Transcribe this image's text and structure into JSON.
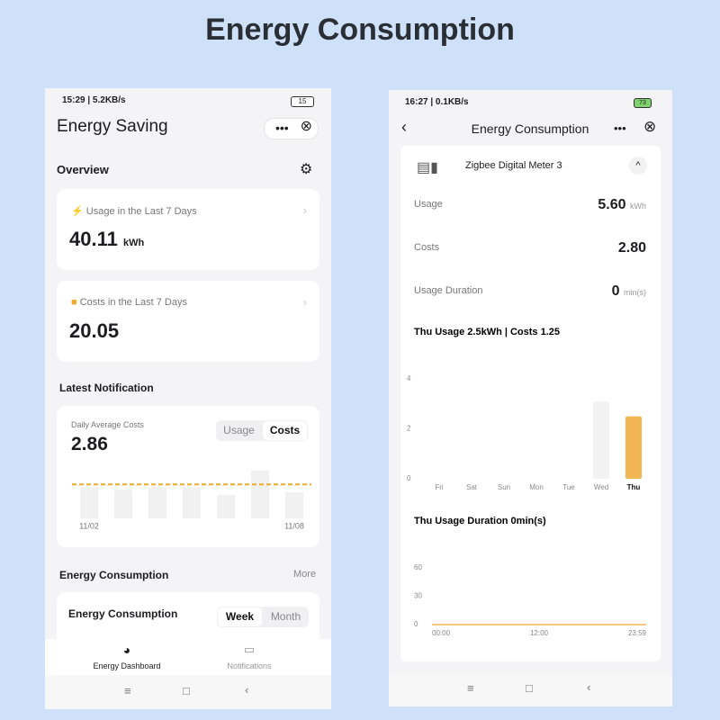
{
  "header": {
    "title": "Energy Consumption"
  },
  "left_screen": {
    "status": {
      "time": "15:29 | 5.2KB/s",
      "battery": "15"
    },
    "title": "Energy Saving",
    "overview": {
      "heading": "Overview",
      "usage": {
        "label": "Usage in the Last 7 Days",
        "value": "40.11",
        "unit": "kWh"
      },
      "costs": {
        "label": "Costs in the Last 7 Days",
        "value": "20.05"
      }
    },
    "notification": {
      "heading": "Latest Notification",
      "caption": "Daily Average Costs",
      "value": 2.86,
      "tabs": [
        "Usage",
        "Costs"
      ],
      "chart": {
        "type": "bar",
        "categories": [
          "11/02",
          null,
          null,
          null,
          null,
          null,
          "11/08"
        ],
        "values": [
          2.64,
          2.42,
          2.64,
          2.64,
          1.98,
          4.03,
          2.2
        ],
        "ylim": [
          0,
          4.4
        ],
        "color": "#f1f1f1",
        "line_color": "#f0a830"
      }
    },
    "energy": {
      "heading": "Energy Consumption",
      "more": "More",
      "card_title": "Energy Consumption",
      "tabs": [
        "Week",
        "Month"
      ]
    },
    "nav": [
      "Energy Dashboard",
      "Notifications"
    ]
  },
  "right_screen": {
    "status": {
      "time": "16:27 | 0.1KB/s",
      "battery": "73"
    },
    "title": "Energy Consumption",
    "device": "Zigbee Digital Meter 3",
    "rows": [
      {
        "label": "Usage",
        "value": "5.60",
        "unit": "kWh"
      },
      {
        "label": "Costs",
        "value": "2.80"
      },
      {
        "label": "Usage Duration",
        "value": "0",
        "unit": "min(s)"
      }
    ],
    "usage_chart": {
      "type": "bar",
      "title": "Thu Usage 2.5kWh | Costs 1.25",
      "categories": [
        "Fri",
        "Sat",
        "Sun",
        "Mon",
        "Tue",
        "Wed",
        "Thu"
      ],
      "values": [
        0,
        0,
        0,
        0,
        0,
        3.1,
        2.5
      ],
      "colors": [
        "#f2f2f2",
        "#f2f2f2",
        "#f2f2f2",
        "#f2f2f2",
        "#f2f2f2",
        "#f2f2f2",
        "#f2b553"
      ],
      "ylim": [
        0,
        4
      ],
      "yticks": [
        0,
        2,
        4
      ]
    },
    "duration_chart": {
      "type": "line",
      "title": "Thu Usage Duration 0min(s)",
      "categories": [
        "00:00",
        "12:00",
        "23:59"
      ],
      "values": [
        0,
        0,
        0
      ],
      "color": "#f2b553",
      "ylim": [
        0,
        60
      ],
      "yticks": [
        0,
        30,
        60
      ]
    }
  }
}
